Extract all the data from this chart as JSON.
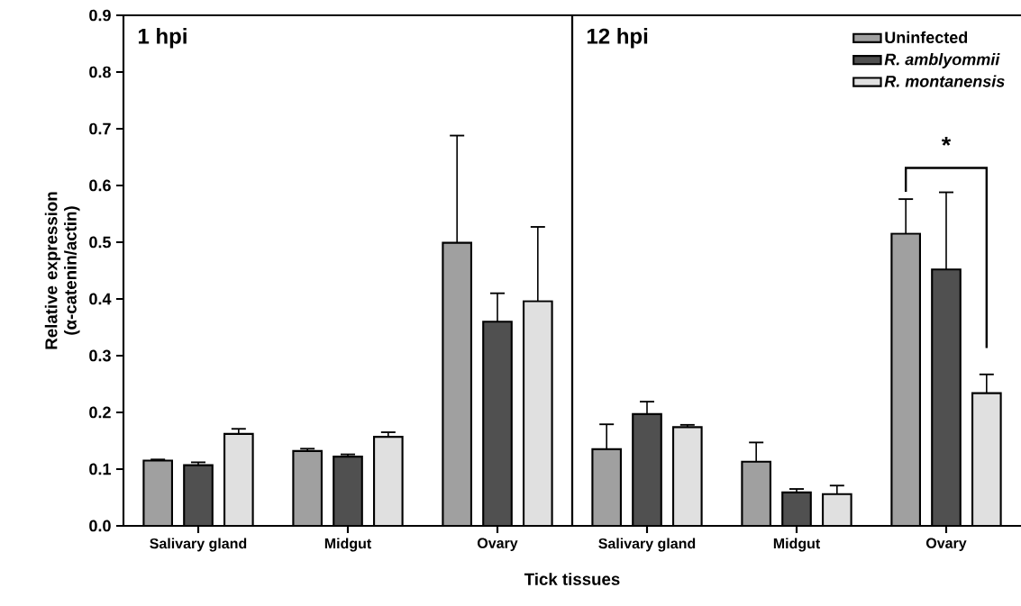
{
  "chart_data": [
    {
      "type": "bar",
      "ylabel": "Relative expression (α-catenin/actin)",
      "xlabel": "Tick tissues",
      "annotations": [
        "1 hpi"
      ],
      "categories": [
        "Salivary gland",
        "Midgut",
        "Ovary"
      ],
      "series": [
        {
          "color": "#a0a0a0",
          "values": [
            0.115,
            0.132,
            0.499
          ],
          "errors": [
            [
              0.115,
              0.117
            ],
            [
              0.132,
              0.136
            ],
            [
              0.499,
              0.688
            ]
          ]
        },
        {
          "color": "#505050",
          "values": [
            0.107,
            0.122,
            0.36
          ],
          "errors": [
            [
              0.107,
              0.112
            ],
            [
              0.122,
              0.126
            ],
            [
              0.36,
              0.41
            ]
          ]
        },
        {
          "color": "#e0e0e0",
          "values": [
            0.162,
            0.157,
            0.396
          ],
          "errors": [
            [
              0.162,
              0.171
            ],
            [
              0.157,
              0.165
            ],
            [
              0.396,
              0.527
            ]
          ]
        }
      ],
      "ylim": [
        0,
        0.9
      ],
      "yticks": [
        {
          "value": 0,
          "label": "0.0"
        },
        0.1,
        0.2,
        0.3,
        0.4,
        0.5,
        0.6,
        0.7,
        0.8,
        0.9
      ]
    },
    {
      "type": "bar",
      "annotations": [
        "12 hpi",
        "*"
      ],
      "categories": [
        "Salivary gland",
        "Midgut",
        "Ovary"
      ],
      "series": [
        {
          "name": "Uninfected",
          "color": "#a0a0a0",
          "values": [
            0.135,
            0.113,
            0.515
          ],
          "errors": [
            [
              0.135,
              0.179
            ],
            [
              0.113,
              0.147
            ],
            [
              0.515,
              0.576
            ]
          ]
        },
        {
          "name": "R. amblyommii",
          "color": "#505050",
          "values": [
            0.197,
            0.059,
            0.452
          ],
          "errors": [
            [
              0.197,
              0.219
            ],
            [
              0.059,
              0.065
            ],
            [
              0.452,
              0.588
            ]
          ]
        },
        {
          "name": "R. montanensis",
          "color": "#e0e0e0",
          "values": [
            0.174,
            0.056,
            0.234
          ],
          "errors": [
            [
              0.174,
              0.178
            ],
            [
              0.056,
              0.071
            ],
            [
              0.234,
              0.267
            ]
          ]
        }
      ],
      "ylim": [
        0,
        0.9
      ],
      "tick_labels": "x",
      "legend": "top right"
    }
  ]
}
